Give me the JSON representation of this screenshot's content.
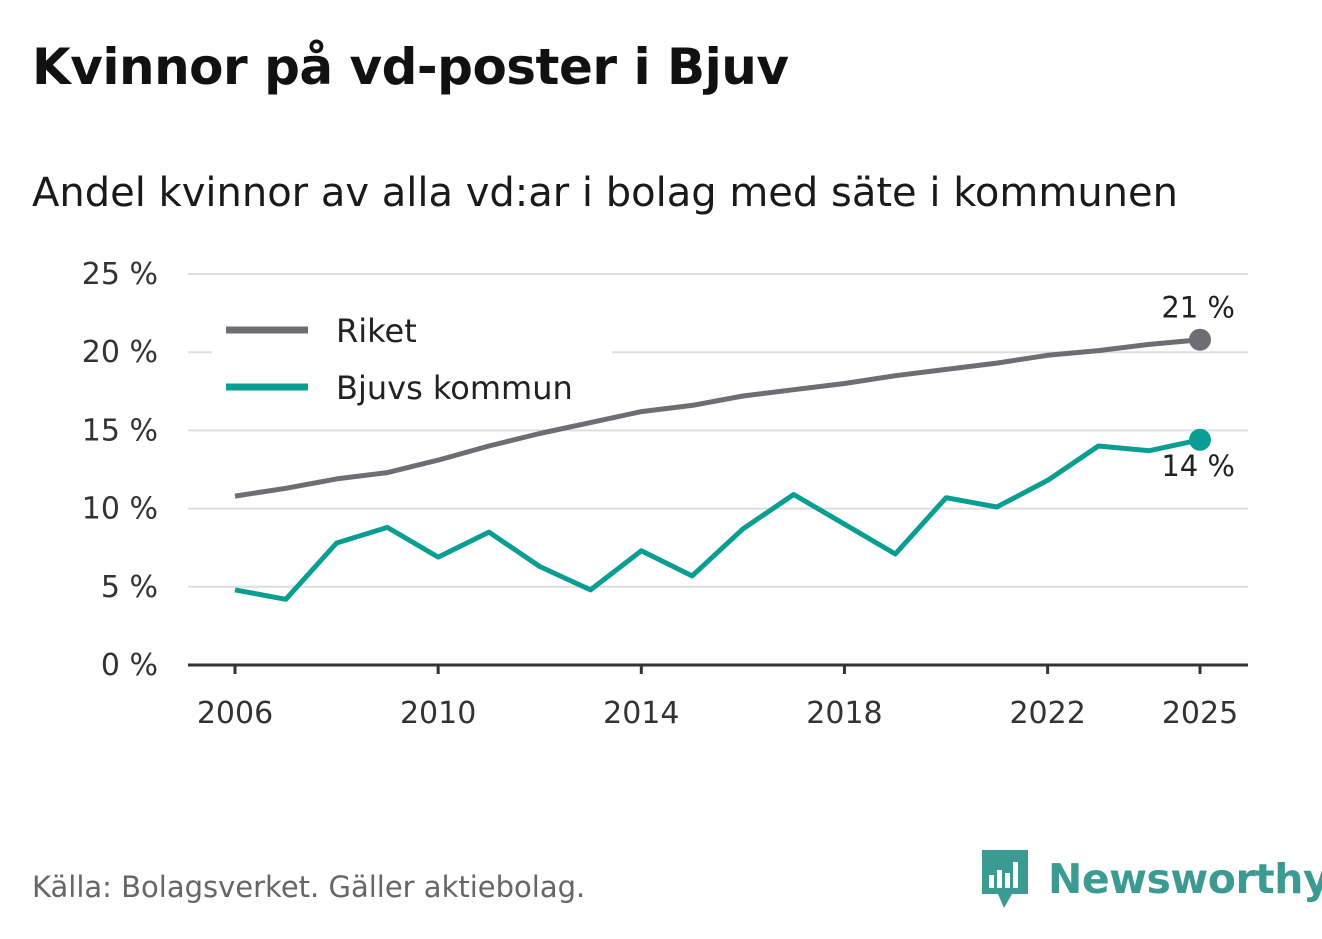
{
  "title": "Kvinnor på vd-poster i Bjuv",
  "subtitle": "Andel kvinnor av alla vd:ar i bolag med säte i kommunen",
  "source": "Källa: Bolagsverket. Gäller aktiebolag.",
  "brand": "Newsworthy",
  "colors": {
    "riket": "#6e6d73",
    "bjuv": "#0a9e92",
    "grid": "#dddddd",
    "axis": "#333333",
    "brand": "#3b9a92"
  },
  "chart_data": {
    "type": "line",
    "title": "Kvinnor på vd-poster i Bjuv",
    "subtitle": "Andel kvinnor av alla vd:ar i bolag med säte i kommunen",
    "xlabel": "",
    "ylabel": "",
    "x": [
      2006,
      2007,
      2008,
      2009,
      2010,
      2011,
      2012,
      2013,
      2014,
      2015,
      2016,
      2017,
      2018,
      2019,
      2020,
      2021,
      2022,
      2023,
      2024,
      2025
    ],
    "xlim": [
      2006,
      2025
    ],
    "ylim": [
      0,
      25
    ],
    "x_ticks": [
      {
        "value": 2006,
        "label": "2006"
      },
      {
        "value": 2010,
        "label": "2010"
      },
      {
        "value": 2014,
        "label": "2014"
      },
      {
        "value": 2018,
        "label": "2018"
      },
      {
        "value": 2022,
        "label": "2022"
      },
      {
        "value": 2025,
        "label": "2025"
      }
    ],
    "y_ticks": [
      {
        "value": 0,
        "label": "0 %"
      },
      {
        "value": 5,
        "label": "5 %"
      },
      {
        "value": 10,
        "label": "10 %"
      },
      {
        "value": 15,
        "label": "15 %"
      },
      {
        "value": 20,
        "label": "20 %"
      },
      {
        "value": 25,
        "label": "25 %"
      }
    ],
    "grid": true,
    "legend_position": "top-left",
    "series": [
      {
        "name": "Riket",
        "key": "riket",
        "values": [
          10.8,
          11.3,
          11.9,
          12.3,
          13.1,
          14.0,
          14.8,
          15.5,
          16.2,
          16.6,
          17.2,
          17.6,
          18.0,
          18.5,
          18.9,
          19.3,
          19.8,
          20.1,
          20.5,
          20.8
        ],
        "end_label": "21 %"
      },
      {
        "name": "Bjuvs kommun",
        "key": "bjuv",
        "values": [
          4.8,
          4.2,
          7.8,
          8.8,
          6.9,
          8.5,
          6.3,
          4.8,
          7.3,
          5.7,
          8.7,
          10.9,
          9.0,
          7.1,
          10.7,
          10.1,
          11.8,
          14.0,
          13.7,
          14.4
        ],
        "end_label": "14 %"
      }
    ]
  }
}
